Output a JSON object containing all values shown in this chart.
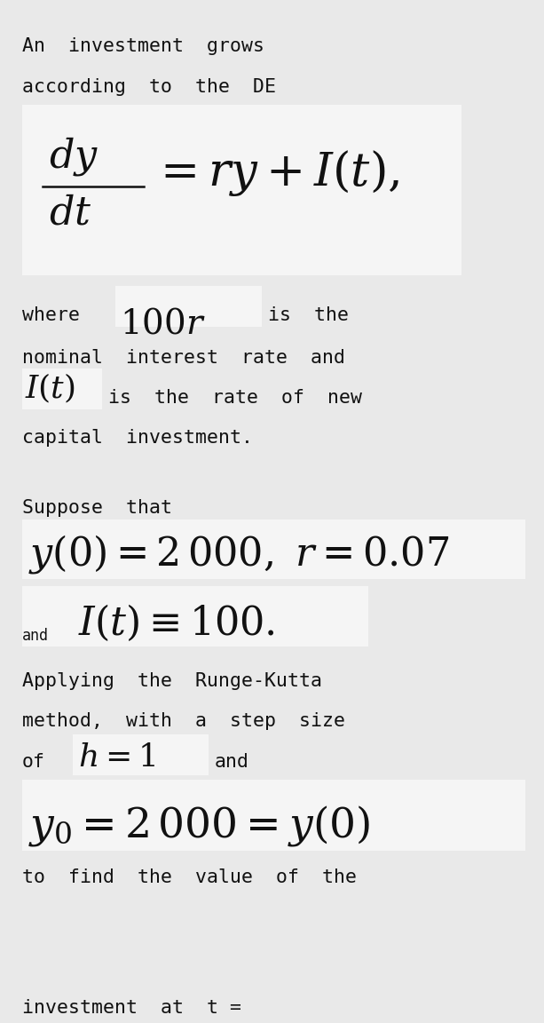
{
  "bg_color": "#e9e9e9",
  "box_color": "#f5f5f5",
  "text_color": "#111111",
  "fig_width": 6.13,
  "fig_height": 11.52,
  "dpi": 100,
  "mono_size": 15.5,
  "small_mono_size": 12.0
}
